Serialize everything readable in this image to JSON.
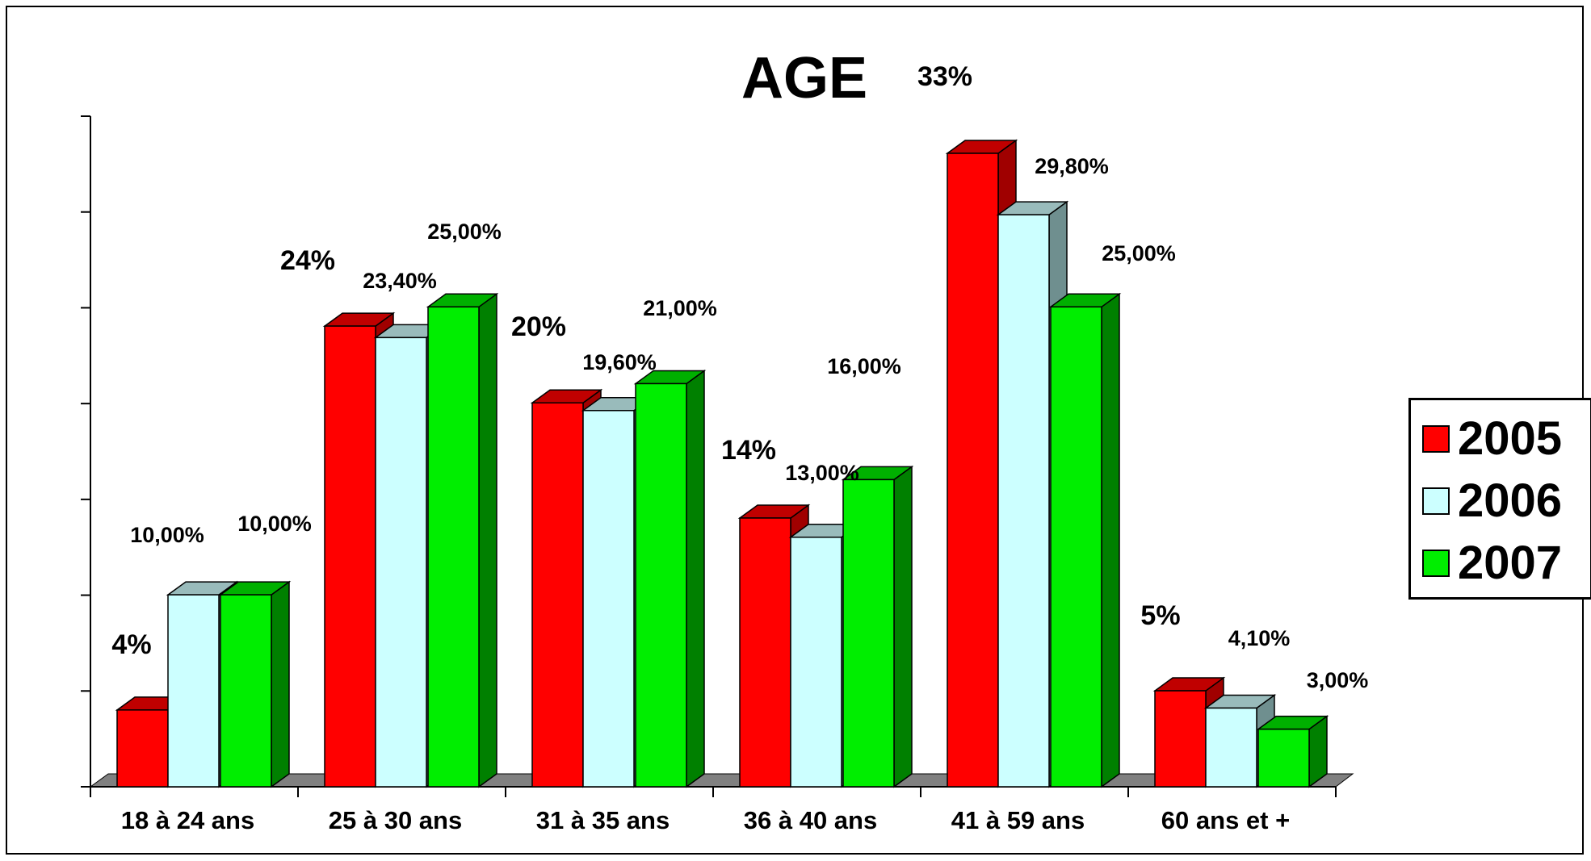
{
  "chart_data": {
    "type": "bar",
    "title": "AGE",
    "categories": [
      "18 à 24 ans",
      "25 à 30 ans",
      "31 à 35 ans",
      "36 à 40 ans",
      "41 à 59 ans",
      "60 ans et +"
    ],
    "series": [
      {
        "name": "2005",
        "color": "#ff0000",
        "values": [
          4,
          24,
          20,
          14,
          33,
          5
        ],
        "labels": [
          "4%",
          "24%",
          "20%",
          "14%",
          "33%",
          "5%"
        ]
      },
      {
        "name": "2006",
        "color": "#ccffff",
        "values": [
          10,
          23.4,
          19.6,
          13,
          29.8,
          4.1
        ],
        "labels": [
          "10,00%",
          "23,40%",
          "19,60%",
          "13,00%",
          "29,80%",
          "4,10%"
        ]
      },
      {
        "name": "2007",
        "color": "#00ee00",
        "values": [
          10,
          25,
          21,
          16,
          25,
          3
        ],
        "labels": [
          "10,00%",
          "25,00%",
          "21,00%",
          "16,00%",
          "25,00%",
          "3,00%"
        ]
      }
    ],
    "ylim": [
      0,
      35
    ],
    "legend_position": "right",
    "three_d": true
  }
}
